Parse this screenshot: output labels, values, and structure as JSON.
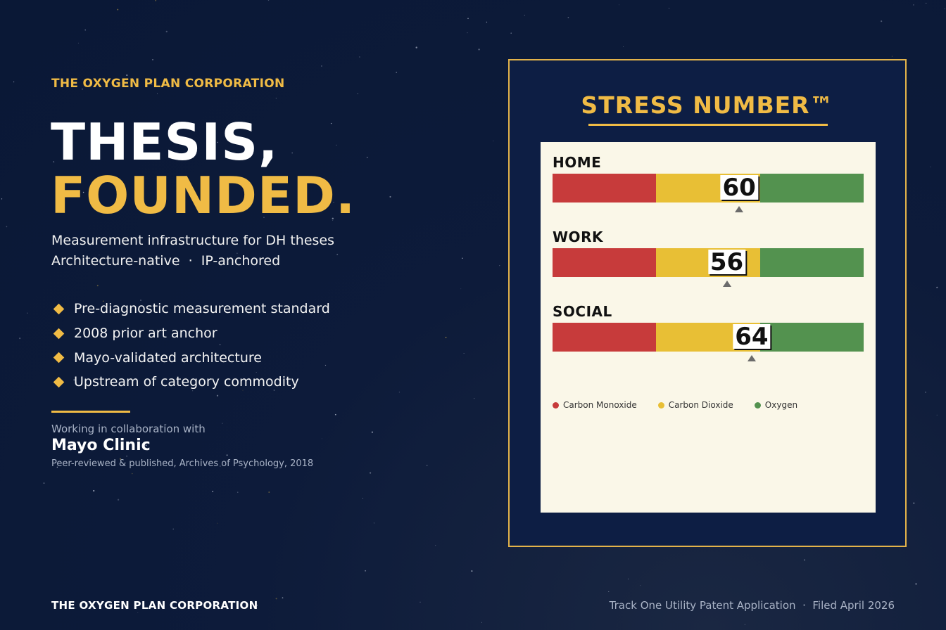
{
  "colors": {
    "background": "#0a1836",
    "gold": "#f0bb45",
    "carbon_monoxide": "#c73b3b",
    "carbon_dioxide": "#e8bf35",
    "oxygen": "#53924f",
    "card": "#faf7e8"
  },
  "left": {
    "eyebrow": "THE OXYGEN PLAN CORPORATION",
    "headline_line1": "THESIS,",
    "headline_line2": "FOUNDED.",
    "subtitle_line1": "Measurement infrastructure for DH theses",
    "subtitle_line2": "Architecture-native  ·  IP-anchored",
    "bullets": [
      "Pre-diagnostic measurement standard",
      "2008 prior art anchor",
      "Mayo-validated architecture",
      "Upstream of category commodity"
    ],
    "bullet_icon": "diamond-icon",
    "collab_lead": "Working in collaboration with",
    "collab_name": "Mayo Clinic",
    "collab_note": "Peer-reviewed & published, Archives of Psychology, 2018"
  },
  "panel": {
    "title": "STRESS NUMBER™",
    "metrics": [
      {
        "label": "HOME",
        "score": "60",
        "value": 60
      },
      {
        "label": "WORK",
        "score": "56",
        "value": 56
      },
      {
        "label": "SOCIAL",
        "score": "64",
        "value": 64
      }
    ],
    "scale": {
      "min": 0,
      "max": 100
    },
    "legend": [
      {
        "label": "Carbon Monoxide",
        "color": "#c73b3b"
      },
      {
        "label": "Carbon Dioxide",
        "color": "#e8bf35"
      },
      {
        "label": "Oxygen",
        "color": "#53924f"
      }
    ]
  },
  "footer": {
    "left": "THE OXYGEN PLAN CORPORATION",
    "right": "Track One Utility Patent Application  ·  Filed April 2026"
  }
}
